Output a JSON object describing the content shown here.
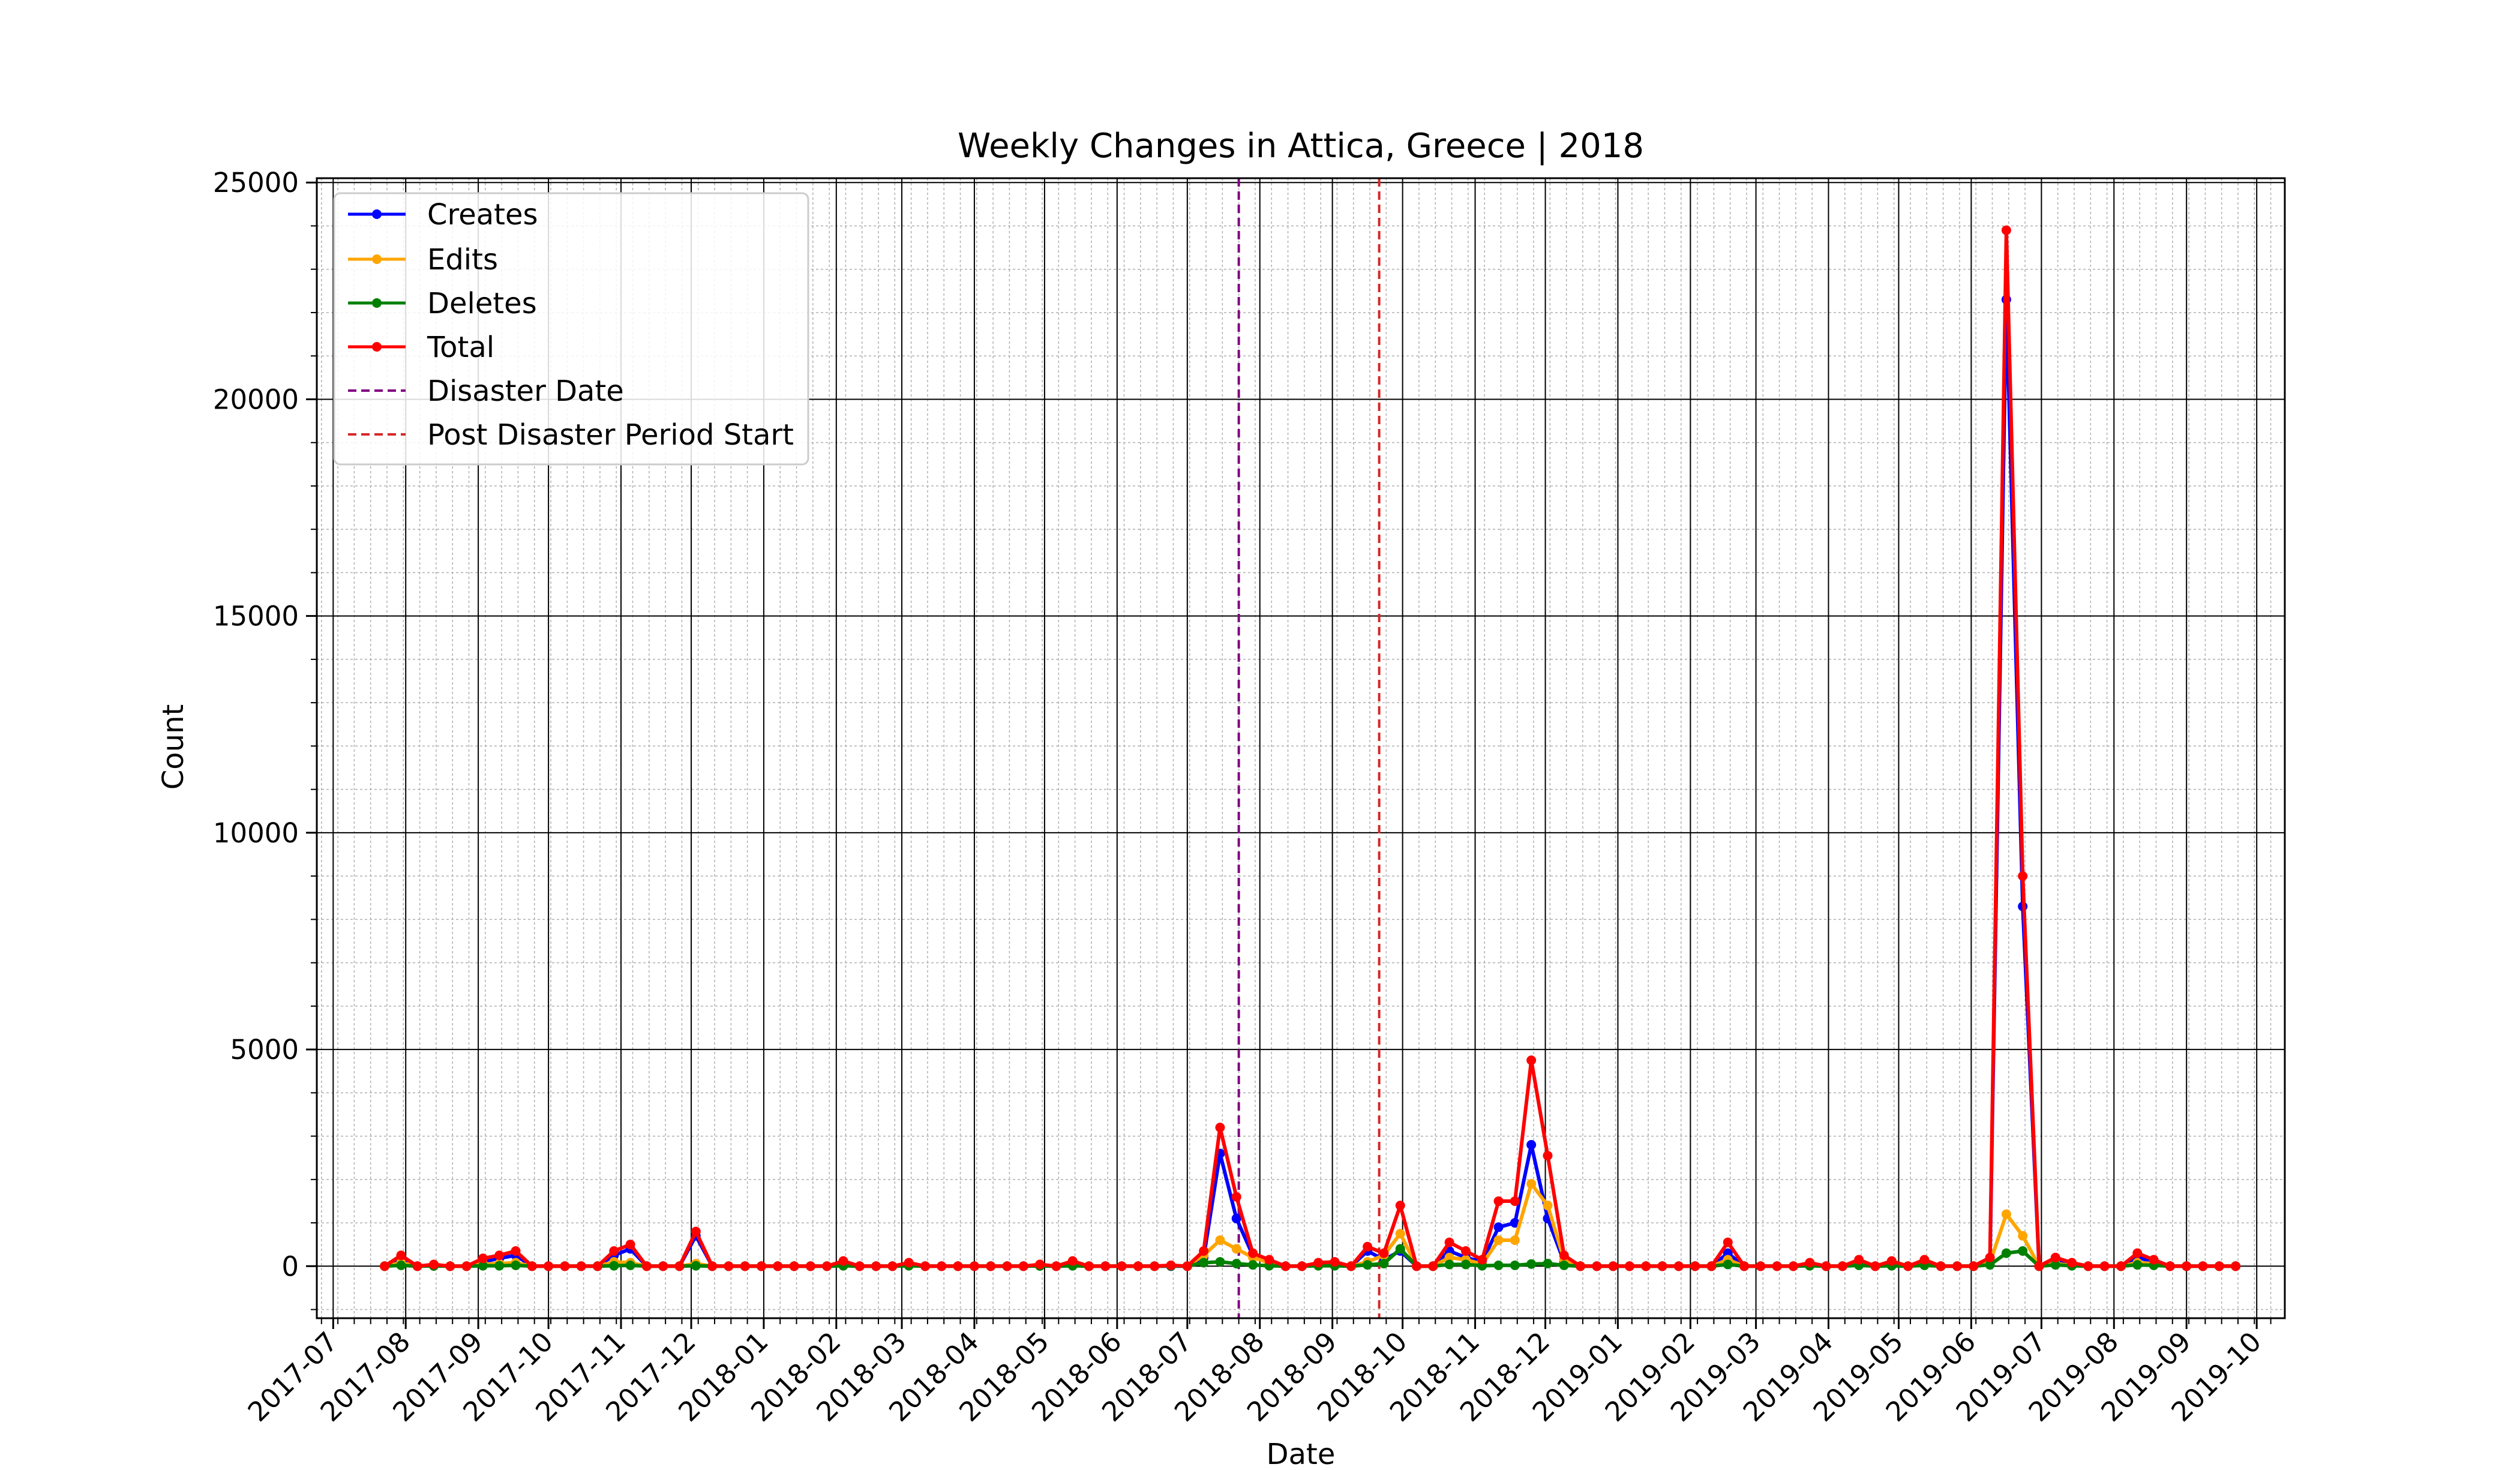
{
  "chart_data": {
    "type": "line",
    "title": "Weekly Changes in Attica, Greece | 2018",
    "xlabel": "Date",
    "ylabel": "Count",
    "ylim": [
      -1200,
      25100
    ],
    "xlim": [
      "2017-06-24",
      "2019-10-13"
    ],
    "yticks": [
      0,
      5000,
      10000,
      15000,
      20000,
      25000
    ],
    "xticks": [
      "2017-07",
      "2017-08",
      "2017-09",
      "2017-10",
      "2017-11",
      "2017-12",
      "2018-01",
      "2018-02",
      "2018-03",
      "2018-04",
      "2018-05",
      "2018-06",
      "2018-07",
      "2018-08",
      "2018-09",
      "2018-10",
      "2018-11",
      "2018-12",
      "2019-01",
      "2019-02",
      "2019-03",
      "2019-04",
      "2019-05",
      "2019-06",
      "2019-07",
      "2019-08",
      "2019-09",
      "2019-10"
    ],
    "grid": true,
    "legend_position": "top-left",
    "vlines": [
      {
        "name": "Disaster Date",
        "date": "2018-07-23",
        "color": "#800080"
      },
      {
        "name": "Post Disaster Period Start",
        "date": "2018-09-21",
        "color": "#d62728"
      }
    ],
    "x": [
      "2017-07-23",
      "2017-07-30",
      "2017-08-06",
      "2017-08-13",
      "2017-08-20",
      "2017-08-27",
      "2017-09-03",
      "2017-09-10",
      "2017-09-17",
      "2017-09-24",
      "2017-10-01",
      "2017-10-08",
      "2017-10-15",
      "2017-10-22",
      "2017-10-29",
      "2017-11-05",
      "2017-11-12",
      "2017-11-19",
      "2017-11-26",
      "2017-12-03",
      "2017-12-10",
      "2017-12-17",
      "2017-12-24",
      "2017-12-31",
      "2018-01-07",
      "2018-01-14",
      "2018-01-21",
      "2018-01-28",
      "2018-02-04",
      "2018-02-11",
      "2018-02-18",
      "2018-02-25",
      "2018-03-04",
      "2018-03-11",
      "2018-03-18",
      "2018-03-25",
      "2018-04-01",
      "2018-04-08",
      "2018-04-15",
      "2018-04-22",
      "2018-04-29",
      "2018-05-06",
      "2018-05-13",
      "2018-05-20",
      "2018-05-27",
      "2018-06-03",
      "2018-06-10",
      "2018-06-17",
      "2018-06-24",
      "2018-07-01",
      "2018-07-08",
      "2018-07-15",
      "2018-07-22",
      "2018-07-29",
      "2018-08-05",
      "2018-08-12",
      "2018-08-19",
      "2018-08-26",
      "2018-09-02",
      "2018-09-09",
      "2018-09-16",
      "2018-09-23",
      "2018-09-30",
      "2018-10-07",
      "2018-10-14",
      "2018-10-21",
      "2018-10-28",
      "2018-11-04",
      "2018-11-11",
      "2018-11-18",
      "2018-11-25",
      "2018-12-02",
      "2018-12-09",
      "2018-12-16",
      "2018-12-23",
      "2018-12-30",
      "2019-01-06",
      "2019-01-13",
      "2019-01-20",
      "2019-01-27",
      "2019-02-03",
      "2019-02-10",
      "2019-02-17",
      "2019-02-24",
      "2019-03-03",
      "2019-03-10",
      "2019-03-17",
      "2019-03-24",
      "2019-03-31",
      "2019-04-07",
      "2019-04-14",
      "2019-04-21",
      "2019-04-28",
      "2019-05-05",
      "2019-05-12",
      "2019-05-19",
      "2019-05-26",
      "2019-06-02",
      "2019-06-09",
      "2019-06-16",
      "2019-06-23",
      "2019-06-30",
      "2019-07-07",
      "2019-07-14",
      "2019-07-21",
      "2019-07-28",
      "2019-08-04",
      "2019-08-11",
      "2019-08-18",
      "2019-08-25",
      "2019-09-01",
      "2019-09-08",
      "2019-09-15",
      "2019-09-22"
    ],
    "series": [
      {
        "name": "Creates",
        "color": "#0000ff",
        "values": [
          0,
          150,
          0,
          20,
          0,
          0,
          100,
          180,
          250,
          0,
          0,
          0,
          0,
          0,
          250,
          400,
          0,
          0,
          0,
          700,
          0,
          0,
          0,
          0,
          0,
          0,
          0,
          0,
          80,
          0,
          0,
          0,
          50,
          0,
          0,
          0,
          0,
          0,
          0,
          0,
          30,
          0,
          90,
          0,
          0,
          0,
          0,
          0,
          0,
          0,
          200,
          2600,
          1100,
          250,
          100,
          0,
          0,
          50,
          60,
          0,
          350,
          150,
          350,
          0,
          0,
          350,
          200,
          100,
          900,
          1000,
          2800,
          1100,
          100,
          0,
          0,
          0,
          0,
          0,
          0,
          0,
          0,
          0,
          300,
          0,
          0,
          0,
          0,
          50,
          0,
          0,
          100,
          0,
          80,
          0,
          100,
          0,
          0,
          0,
          100,
          22300,
          8300,
          0,
          150,
          50,
          0,
          0,
          0,
          200,
          100,
          0,
          0,
          0,
          0,
          0
        ]
      },
      {
        "name": "Edits",
        "color": "#ffa500",
        "values": [
          0,
          80,
          0,
          10,
          0,
          0,
          50,
          60,
          80,
          0,
          0,
          0,
          0,
          0,
          100,
          80,
          0,
          0,
          0,
          60,
          0,
          0,
          0,
          0,
          0,
          0,
          0,
          0,
          40,
          0,
          0,
          0,
          30,
          0,
          0,
          0,
          0,
          0,
          0,
          0,
          10,
          0,
          30,
          0,
          0,
          0,
          0,
          0,
          20,
          0,
          250,
          600,
          400,
          200,
          80,
          0,
          0,
          30,
          30,
          0,
          100,
          250,
          750,
          0,
          0,
          200,
          150,
          50,
          600,
          600,
          1900,
          1400,
          150,
          0,
          0,
          0,
          0,
          0,
          0,
          0,
          0,
          0,
          150,
          0,
          0,
          0,
          0,
          20,
          0,
          0,
          50,
          0,
          30,
          0,
          40,
          0,
          0,
          0,
          80,
          1200,
          700,
          0,
          60,
          20,
          0,
          0,
          0,
          80,
          60,
          0,
          0,
          0,
          0,
          0
        ]
      },
      {
        "name": "Deletes",
        "color": "#008000",
        "values": [
          0,
          20,
          0,
          5,
          0,
          0,
          10,
          10,
          20,
          0,
          0,
          0,
          0,
          0,
          10,
          20,
          0,
          0,
          0,
          10,
          0,
          0,
          0,
          0,
          0,
          0,
          0,
          0,
          10,
          0,
          0,
          0,
          10,
          0,
          0,
          0,
          0,
          0,
          0,
          0,
          5,
          0,
          10,
          0,
          0,
          0,
          0,
          0,
          5,
          0,
          80,
          100,
          60,
          30,
          10,
          0,
          0,
          10,
          10,
          0,
          30,
          60,
          400,
          0,
          0,
          40,
          40,
          10,
          20,
          20,
          50,
          60,
          20,
          0,
          0,
          0,
          0,
          0,
          0,
          0,
          0,
          0,
          40,
          0,
          0,
          0,
          0,
          10,
          0,
          0,
          20,
          0,
          10,
          0,
          20,
          0,
          0,
          0,
          30,
          300,
          350,
          0,
          30,
          10,
          0,
          0,
          0,
          30,
          20,
          0,
          0,
          0,
          0,
          0
        ]
      },
      {
        "name": "Total",
        "color": "#ff0000",
        "values": [
          0,
          250,
          0,
          40,
          0,
          0,
          180,
          250,
          350,
          0,
          0,
          0,
          0,
          0,
          350,
          500,
          0,
          0,
          0,
          800,
          0,
          0,
          0,
          0,
          0,
          0,
          0,
          0,
          120,
          0,
          0,
          0,
          80,
          0,
          0,
          0,
          0,
          0,
          0,
          0,
          40,
          0,
          120,
          0,
          0,
          0,
          0,
          0,
          20,
          0,
          350,
          3200,
          1600,
          300,
          150,
          0,
          0,
          80,
          100,
          0,
          450,
          300,
          1400,
          0,
          0,
          550,
          350,
          150,
          1500,
          1500,
          4750,
          2550,
          250,
          0,
          0,
          0,
          0,
          0,
          0,
          0,
          0,
          0,
          550,
          0,
          0,
          0,
          0,
          80,
          0,
          0,
          150,
          0,
          120,
          0,
          150,
          0,
          0,
          0,
          200,
          23900,
          9000,
          0,
          200,
          80,
          0,
          0,
          0,
          300,
          150,
          0,
          0,
          0,
          0,
          0
        ]
      }
    ]
  }
}
